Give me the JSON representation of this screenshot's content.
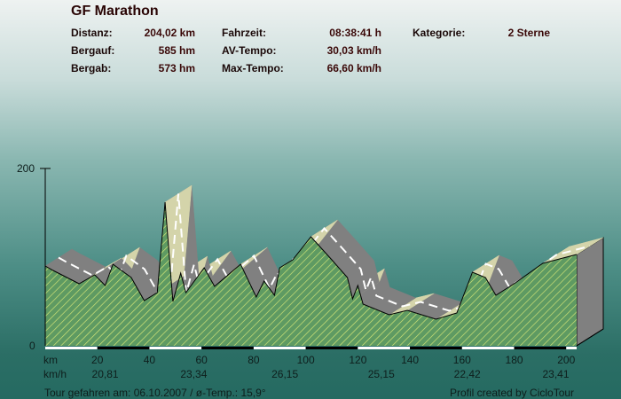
{
  "header": {
    "title": "GF Marathon",
    "stats": [
      {
        "label": "Distanz:",
        "value": "204,02 km"
      },
      {
        "label": "Bergauf:",
        "value": "585 hm"
      },
      {
        "label": "Bergab:",
        "value": "573 hm"
      },
      {
        "label": "Fahrzeit:",
        "value": "08:38:41 h"
      },
      {
        "label": "AV-Tempo:",
        "value": "30,03 km/h"
      },
      {
        "label": "Max-Tempo:",
        "value": "66,60 km/h"
      },
      {
        "label": "Kategorie:",
        "value": "2 Sterne"
      }
    ]
  },
  "chart_data": {
    "type": "area",
    "title": "GF Marathon",
    "xlabel": "km",
    "ylabel": "",
    "xlim": [
      0,
      204
    ],
    "ylim": [
      0,
      200
    ],
    "y_ticks": [
      "0",
      "200"
    ],
    "x_ticks": [
      "20",
      "40",
      "60",
      "80",
      "100",
      "120",
      "140",
      "160",
      "180",
      "200"
    ],
    "x_unit_label": "km",
    "speed_row_label": "km/h",
    "speed_labels": [
      {
        "km": 23,
        "value": "20,81"
      },
      {
        "km": 57,
        "value": "23,34"
      },
      {
        "km": 92,
        "value": "26,15"
      },
      {
        "km": 129,
        "value": "25,15"
      },
      {
        "km": 162,
        "value": "22,42"
      },
      {
        "km": 196,
        "value": "23,41"
      }
    ],
    "x": [
      0,
      3,
      13,
      19,
      23,
      26,
      33,
      38,
      43,
      46,
      49,
      52,
      54,
      61,
      65,
      75,
      81,
      84,
      88,
      90,
      95,
      102,
      110,
      116,
      118,
      120,
      122,
      132,
      139,
      150,
      158,
      164,
      169,
      173,
      180,
      191,
      204
    ],
    "y": [
      90,
      85,
      70,
      80,
      68,
      92,
      77,
      51,
      60,
      162,
      50,
      82,
      60,
      88,
      67,
      92,
      55,
      73,
      57,
      88,
      97,
      123,
      97,
      77,
      53,
      68,
      47,
      35,
      40,
      30,
      37,
      83,
      77,
      57,
      70,
      93,
      103
    ],
    "colors": {
      "fill": "#5e9a62",
      "hatch": "#d8e878",
      "side": "#808080",
      "slope": "#d4d4aa",
      "ridge": "#ffffff"
    }
  },
  "footer": {
    "left": "Tour gefahren am: 06.10.2007  /  ø-Temp.: 15,9°",
    "right": "Profil created by CicloTour"
  }
}
